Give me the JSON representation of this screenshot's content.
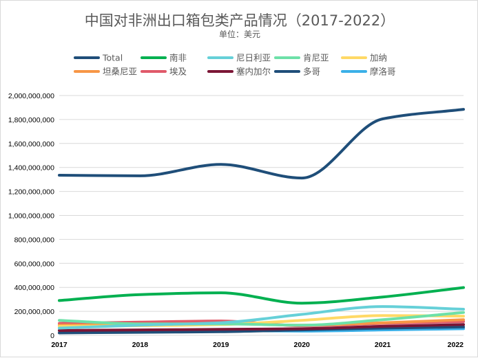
{
  "chart_data": {
    "type": "line",
    "title": "中国对非洲出口箱包类产品情况（2017-2022）",
    "subtitle": "单位：美元",
    "x": [
      "2017",
      "2018",
      "2019",
      "2020",
      "2021",
      "2022"
    ],
    "ylim": [
      0,
      2000000000
    ],
    "yticks": [
      "0",
      "200,000,000",
      "400,000,000",
      "600,000,000",
      "800,000,000",
      "1,000,000,000",
      "1,200,000,000",
      "1,400,000,000",
      "1,600,000,000",
      "1,800,000,000",
      "2,000,000,000"
    ],
    "grid": true,
    "smooth": true,
    "legend_position": "top",
    "series": [
      {
        "name": "Total",
        "color": "#1f4e79",
        "values": [
          1335000000,
          1330000000,
          1425000000,
          1312000000,
          1805000000,
          1885000000
        ]
      },
      {
        "name": "南非",
        "color": "#00b050",
        "values": [
          290000000,
          340000000,
          355000000,
          268000000,
          320000000,
          398000000
        ]
      },
      {
        "name": "尼日利亚",
        "color": "#66d0d8",
        "values": [
          60000000,
          85000000,
          105000000,
          175000000,
          240000000,
          218000000
        ]
      },
      {
        "name": "肯尼亚",
        "color": "#6de0a8",
        "values": [
          125000000,
          95000000,
          95000000,
          85000000,
          130000000,
          190000000
        ]
      },
      {
        "name": "加纳",
        "color": "#ffd966",
        "values": [
          75000000,
          80000000,
          90000000,
          125000000,
          165000000,
          160000000
        ]
      },
      {
        "name": "坦桑尼亚",
        "color": "#f79646",
        "values": [
          85000000,
          90000000,
          100000000,
          85000000,
          105000000,
          130000000
        ]
      },
      {
        "name": "埃及",
        "color": "#e05a6a",
        "values": [
          100000000,
          110000000,
          120000000,
          80000000,
          100000000,
          115000000
        ]
      },
      {
        "name": "塞内加尔",
        "color": "#7b1535",
        "values": [
          40000000,
          45000000,
          50000000,
          55000000,
          75000000,
          90000000
        ]
      },
      {
        "name": "多哥",
        "color": "#1f4e79",
        "values": [
          20000000,
          25000000,
          30000000,
          45000000,
          60000000,
          70000000
        ]
      },
      {
        "name": "摩洛哥",
        "color": "#3bb0e8",
        "values": [
          40000000,
          40000000,
          40000000,
          35000000,
          45000000,
          55000000
        ]
      }
    ]
  }
}
